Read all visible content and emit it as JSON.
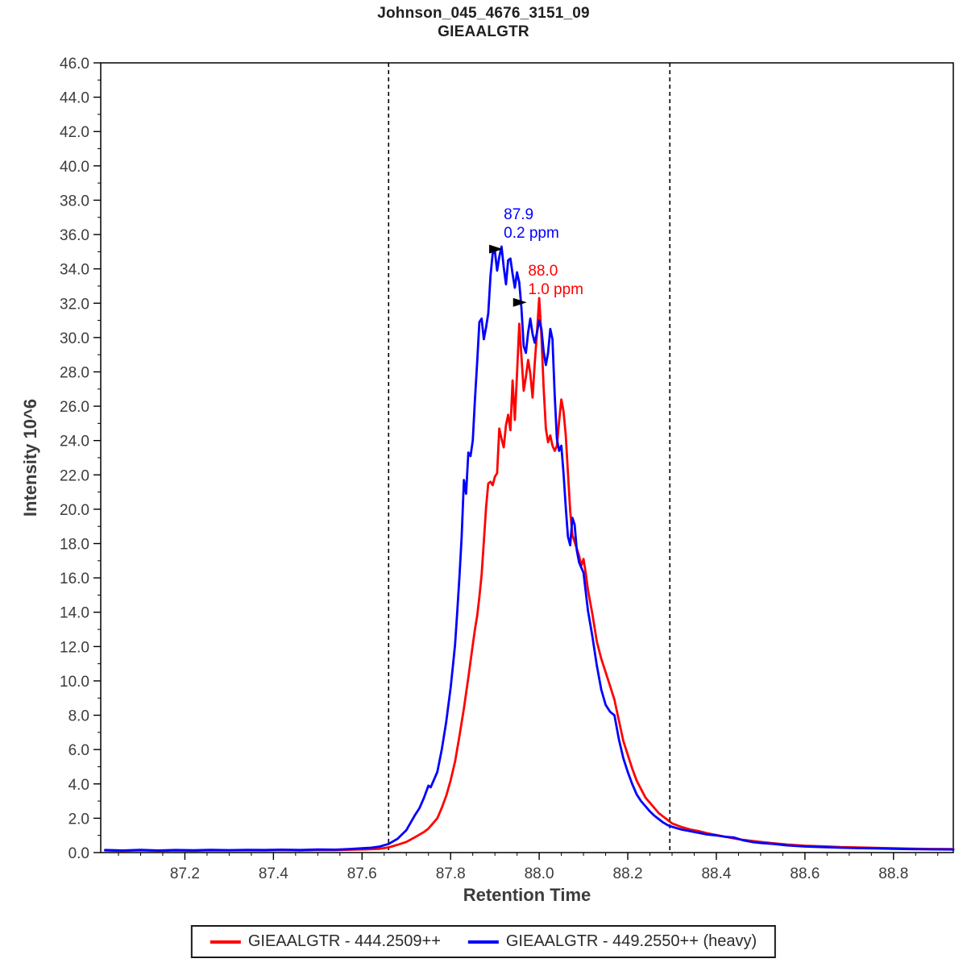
{
  "title": {
    "line1": "Johnson_045_4676_3151_09",
    "line2": "GIEAALGTR"
  },
  "legend": {
    "items": [
      {
        "label": "GIEAALGTR - 444.2509++",
        "color": "#ff0000"
      },
      {
        "label": "GIEAALGTR - 449.2550++ (heavy)",
        "color": "#0000ff"
      }
    ]
  },
  "colors": {
    "axis": "#000000",
    "tick_label": "#3c3c3c",
    "boundary": "#000000",
    "background": "#ffffff"
  },
  "chart_data": {
    "type": "line",
    "title": "Johnson_045_4676_3151_09 / GIEAALGTR",
    "xlabel": "Retention Time",
    "ylabel": "Intensity 10^6",
    "xlim": [
      87.01,
      88.935
    ],
    "ylim": [
      0,
      46
    ],
    "x_major_ticks": [
      87.2,
      87.4,
      87.6,
      87.8,
      88.0,
      88.2,
      88.4,
      88.6,
      88.8
    ],
    "x_minor_step": 0.05,
    "y_major_ticks": [
      0,
      2,
      4,
      6,
      8,
      10,
      12,
      14,
      16,
      18,
      20,
      22,
      24,
      26,
      28,
      30,
      32,
      34,
      36,
      38,
      40,
      42,
      44,
      46
    ],
    "y_minor_step": 1,
    "grid": false,
    "legend_position": "bottom",
    "peak_boundaries": {
      "start": 87.66,
      "end": 88.295,
      "style": "dashed",
      "color": "#000000"
    },
    "series": [
      {
        "name": "GIEAALGTR - 444.2509++",
        "color": "#ff0000",
        "width": 2.8,
        "points": [
          [
            87.02,
            0.12
          ],
          [
            87.06,
            0.1
          ],
          [
            87.1,
            0.13
          ],
          [
            87.14,
            0.1
          ],
          [
            87.18,
            0.12
          ],
          [
            87.22,
            0.11
          ],
          [
            87.26,
            0.13
          ],
          [
            87.3,
            0.12
          ],
          [
            87.34,
            0.13
          ],
          [
            87.38,
            0.12
          ],
          [
            87.42,
            0.14
          ],
          [
            87.46,
            0.12
          ],
          [
            87.5,
            0.15
          ],
          [
            87.54,
            0.14
          ],
          [
            87.58,
            0.17
          ],
          [
            87.61,
            0.19
          ],
          [
            87.64,
            0.22
          ],
          [
            87.66,
            0.3
          ],
          [
            87.68,
            0.45
          ],
          [
            87.7,
            0.62
          ],
          [
            87.72,
            0.9
          ],
          [
            87.74,
            1.2
          ],
          [
            87.75,
            1.4
          ],
          [
            87.76,
            1.7
          ],
          [
            87.77,
            2.0
          ],
          [
            87.78,
            2.6
          ],
          [
            87.79,
            3.3
          ],
          [
            87.8,
            4.2
          ],
          [
            87.81,
            5.3
          ],
          [
            87.82,
            6.8
          ],
          [
            87.83,
            8.4
          ],
          [
            87.84,
            10.2
          ],
          [
            87.85,
            12.1
          ],
          [
            87.855,
            13.0
          ],
          [
            87.86,
            13.8
          ],
          [
            87.865,
            14.9
          ],
          [
            87.87,
            16.2
          ],
          [
            87.875,
            18.1
          ],
          [
            87.88,
            20.1
          ],
          [
            87.885,
            21.5
          ],
          [
            87.89,
            21.6
          ],
          [
            87.895,
            21.4
          ],
          [
            87.9,
            21.9
          ],
          [
            87.905,
            22.1
          ],
          [
            87.91,
            24.7
          ],
          [
            87.915,
            24.1
          ],
          [
            87.92,
            23.6
          ],
          [
            87.925,
            24.9
          ],
          [
            87.93,
            25.5
          ],
          [
            87.935,
            24.6
          ],
          [
            87.94,
            27.5
          ],
          [
            87.945,
            25.2
          ],
          [
            87.95,
            27.9
          ],
          [
            87.955,
            30.8
          ],
          [
            87.96,
            28.9
          ],
          [
            87.965,
            26.9
          ],
          [
            87.97,
            27.7
          ],
          [
            87.975,
            28.7
          ],
          [
            87.98,
            27.9
          ],
          [
            87.985,
            26.5
          ],
          [
            87.99,
            28.5
          ],
          [
            87.995,
            30.3
          ],
          [
            88.0,
            32.3
          ],
          [
            88.005,
            30.1
          ],
          [
            88.01,
            27.1
          ],
          [
            88.015,
            24.7
          ],
          [
            88.02,
            23.9
          ],
          [
            88.025,
            24.3
          ],
          [
            88.03,
            23.7
          ],
          [
            88.035,
            23.4
          ],
          [
            88.04,
            23.7
          ],
          [
            88.045,
            25.1
          ],
          [
            88.05,
            26.4
          ],
          [
            88.055,
            25.7
          ],
          [
            88.06,
            24.3
          ],
          [
            88.065,
            22.1
          ],
          [
            88.07,
            19.9
          ],
          [
            88.075,
            18.5
          ],
          [
            88.08,
            18.1
          ],
          [
            88.085,
            17.7
          ],
          [
            88.09,
            17.3
          ],
          [
            88.095,
            16.7
          ],
          [
            88.1,
            17.1
          ],
          [
            88.105,
            16.3
          ],
          [
            88.11,
            15.3
          ],
          [
            88.12,
            13.9
          ],
          [
            88.13,
            12.3
          ],
          [
            88.14,
            11.3
          ],
          [
            88.15,
            10.5
          ],
          [
            88.16,
            9.7
          ],
          [
            88.17,
            8.9
          ],
          [
            88.18,
            7.7
          ],
          [
            88.19,
            6.5
          ],
          [
            88.2,
            5.7
          ],
          [
            88.21,
            4.9
          ],
          [
            88.22,
            4.2
          ],
          [
            88.23,
            3.7
          ],
          [
            88.24,
            3.2
          ],
          [
            88.25,
            2.9
          ],
          [
            88.26,
            2.6
          ],
          [
            88.27,
            2.3
          ],
          [
            88.28,
            2.1
          ],
          [
            88.29,
            1.9
          ],
          [
            88.3,
            1.7
          ],
          [
            88.32,
            1.5
          ],
          [
            88.34,
            1.35
          ],
          [
            88.36,
            1.25
          ],
          [
            88.38,
            1.12
          ],
          [
            88.4,
            1.02
          ],
          [
            88.42,
            0.92
          ],
          [
            88.44,
            0.82
          ],
          [
            88.46,
            0.74
          ],
          [
            88.48,
            0.68
          ],
          [
            88.5,
            0.62
          ],
          [
            88.53,
            0.54
          ],
          [
            88.56,
            0.47
          ],
          [
            88.6,
            0.4
          ],
          [
            88.64,
            0.36
          ],
          [
            88.68,
            0.32
          ],
          [
            88.72,
            0.3
          ],
          [
            88.76,
            0.27
          ],
          [
            88.8,
            0.25
          ],
          [
            88.84,
            0.23
          ],
          [
            88.88,
            0.21
          ],
          [
            88.935,
            0.2
          ]
        ]
      },
      {
        "name": "GIEAALGTR - 449.2550++ (heavy)",
        "color": "#0000ff",
        "width": 2.8,
        "points": [
          [
            87.02,
            0.15
          ],
          [
            87.06,
            0.12
          ],
          [
            87.1,
            0.16
          ],
          [
            87.14,
            0.12
          ],
          [
            87.18,
            0.15
          ],
          [
            87.22,
            0.13
          ],
          [
            87.26,
            0.16
          ],
          [
            87.3,
            0.14
          ],
          [
            87.34,
            0.16
          ],
          [
            87.38,
            0.15
          ],
          [
            87.42,
            0.17
          ],
          [
            87.46,
            0.15
          ],
          [
            87.5,
            0.18
          ],
          [
            87.54,
            0.17
          ],
          [
            87.57,
            0.2
          ],
          [
            87.6,
            0.25
          ],
          [
            87.62,
            0.28
          ],
          [
            87.64,
            0.35
          ],
          [
            87.66,
            0.5
          ],
          [
            87.68,
            0.8
          ],
          [
            87.7,
            1.3
          ],
          [
            87.71,
            1.75
          ],
          [
            87.72,
            2.2
          ],
          [
            87.73,
            2.6
          ],
          [
            87.74,
            3.2
          ],
          [
            87.75,
            3.9
          ],
          [
            87.755,
            3.8
          ],
          [
            87.76,
            4.1
          ],
          [
            87.77,
            4.7
          ],
          [
            87.78,
            6.0
          ],
          [
            87.79,
            7.6
          ],
          [
            87.8,
            9.6
          ],
          [
            87.805,
            10.8
          ],
          [
            87.81,
            12.1
          ],
          [
            87.815,
            14.0
          ],
          [
            87.82,
            16.1
          ],
          [
            87.825,
            18.4
          ],
          [
            87.83,
            21.7
          ],
          [
            87.835,
            20.9
          ],
          [
            87.84,
            23.3
          ],
          [
            87.845,
            23.1
          ],
          [
            87.85,
            24.0
          ],
          [
            87.855,
            26.4
          ],
          [
            87.86,
            28.6
          ],
          [
            87.865,
            30.9
          ],
          [
            87.87,
            31.1
          ],
          [
            87.875,
            29.9
          ],
          [
            87.88,
            30.6
          ],
          [
            87.885,
            31.4
          ],
          [
            87.89,
            33.6
          ],
          [
            87.895,
            34.9
          ],
          [
            87.9,
            35.0
          ],
          [
            87.905,
            33.9
          ],
          [
            87.91,
            34.7
          ],
          [
            87.915,
            35.3
          ],
          [
            87.92,
            34.1
          ],
          [
            87.925,
            33.1
          ],
          [
            87.93,
            34.5
          ],
          [
            87.935,
            34.6
          ],
          [
            87.94,
            33.7
          ],
          [
            87.945,
            32.9
          ],
          [
            87.95,
            33.8
          ],
          [
            87.955,
            33.2
          ],
          [
            87.96,
            31.7
          ],
          [
            87.965,
            29.5
          ],
          [
            87.97,
            29.1
          ],
          [
            87.975,
            30.3
          ],
          [
            87.98,
            31.1
          ],
          [
            87.985,
            30.2
          ],
          [
            87.99,
            29.7
          ],
          [
            87.995,
            30.3
          ],
          [
            88.0,
            31.0
          ],
          [
            88.005,
            30.5
          ],
          [
            88.01,
            29.2
          ],
          [
            88.015,
            28.4
          ],
          [
            88.02,
            29.1
          ],
          [
            88.025,
            30.5
          ],
          [
            88.03,
            29.9
          ],
          [
            88.035,
            26.6
          ],
          [
            88.04,
            24.1
          ],
          [
            88.045,
            23.4
          ],
          [
            88.05,
            23.7
          ],
          [
            88.055,
            22.1
          ],
          [
            88.06,
            20.1
          ],
          [
            88.065,
            18.4
          ],
          [
            88.07,
            17.9
          ],
          [
            88.075,
            19.5
          ],
          [
            88.08,
            19.1
          ],
          [
            88.085,
            17.6
          ],
          [
            88.09,
            16.9
          ],
          [
            88.1,
            16.3
          ],
          [
            88.11,
            14.1
          ],
          [
            88.12,
            12.6
          ],
          [
            88.13,
            10.9
          ],
          [
            88.14,
            9.5
          ],
          [
            88.15,
            8.6
          ],
          [
            88.16,
            8.2
          ],
          [
            88.17,
            8.0
          ],
          [
            88.18,
            6.6
          ],
          [
            88.19,
            5.5
          ],
          [
            88.2,
            4.7
          ],
          [
            88.21,
            4.0
          ],
          [
            88.22,
            3.4
          ],
          [
            88.23,
            3.0
          ],
          [
            88.24,
            2.7
          ],
          [
            88.25,
            2.4
          ],
          [
            88.26,
            2.15
          ],
          [
            88.27,
            1.95
          ],
          [
            88.28,
            1.75
          ],
          [
            88.29,
            1.6
          ],
          [
            88.3,
            1.5
          ],
          [
            88.32,
            1.35
          ],
          [
            88.34,
            1.25
          ],
          [
            88.36,
            1.15
          ],
          [
            88.38,
            1.05
          ],
          [
            88.4,
            1.0
          ],
          [
            88.42,
            0.92
          ],
          [
            88.44,
            0.88
          ],
          [
            88.46,
            0.72
          ],
          [
            88.48,
            0.62
          ],
          [
            88.5,
            0.56
          ],
          [
            88.53,
            0.5
          ],
          [
            88.56,
            0.42
          ],
          [
            88.6,
            0.35
          ],
          [
            88.64,
            0.32
          ],
          [
            88.68,
            0.28
          ],
          [
            88.72,
            0.26
          ],
          [
            88.76,
            0.24
          ],
          [
            88.8,
            0.22
          ],
          [
            88.84,
            0.2
          ],
          [
            88.88,
            0.19
          ],
          [
            88.935,
            0.18
          ]
        ]
      }
    ],
    "annotations": [
      {
        "series": "GIEAALGTR - 449.2550++ (heavy)",
        "label_lines": [
          "87.9",
          "0.2 ppm"
        ],
        "color": "#0000ff",
        "x": 87.92,
        "y": 36.9,
        "arrow_tip": {
          "x": 87.918,
          "y": 35.15
        }
      },
      {
        "series": "GIEAALGTR - 444.2509++",
        "label_lines": [
          "88.0",
          "1.0 ppm"
        ],
        "color": "#ff0000",
        "x": 87.975,
        "y": 33.6,
        "arrow_tip": {
          "x": 87.972,
          "y": 32.05
        }
      }
    ]
  }
}
